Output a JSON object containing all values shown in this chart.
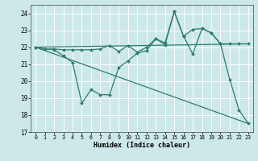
{
  "xlabel": "Humidex (Indice chaleur)",
  "bg_color": "#cce8e8",
  "grid_color": "#ffffff",
  "line_color": "#2e7d6e",
  "xlim": [
    -0.5,
    23.5
  ],
  "ylim": [
    17,
    24.5
  ],
  "yticks": [
    17,
    18,
    19,
    20,
    21,
    22,
    23,
    24
  ],
  "xticks": [
    0,
    1,
    2,
    3,
    4,
    5,
    6,
    7,
    8,
    9,
    10,
    11,
    12,
    13,
    14,
    15,
    16,
    17,
    18,
    19,
    20,
    21,
    22,
    23
  ],
  "lines": [
    {
      "x": [
        0,
        23
      ],
      "y": [
        22.0,
        22.2
      ],
      "has_markers": false,
      "lw": 0.9
    },
    {
      "x": [
        0,
        23
      ],
      "y": [
        22.0,
        17.5
      ],
      "has_markers": false,
      "lw": 0.9
    },
    {
      "x": [
        0,
        1,
        2,
        3,
        4,
        5,
        6,
        7,
        8,
        9,
        10,
        11,
        12,
        13,
        14,
        15,
        16,
        17,
        18,
        19,
        20,
        21,
        22,
        23
      ],
      "y": [
        22.0,
        21.9,
        21.9,
        21.85,
        21.85,
        21.85,
        21.85,
        21.9,
        22.1,
        21.75,
        22.1,
        21.7,
        22.0,
        22.5,
        22.25,
        24.1,
        22.65,
        23.05,
        23.1,
        22.85,
        22.2,
        22.2,
        22.2,
        22.2
      ],
      "has_markers": true,
      "lw": 0.9
    },
    {
      "x": [
        0,
        1,
        2,
        3,
        4,
        5,
        6,
        7,
        8,
        9,
        10,
        11,
        12,
        13,
        14,
        15,
        16,
        17,
        18,
        19,
        20,
        21,
        22,
        23
      ],
      "y": [
        22.0,
        21.9,
        21.85,
        21.5,
        21.1,
        18.7,
        19.5,
        19.2,
        19.2,
        20.8,
        21.2,
        21.65,
        21.8,
        22.5,
        22.15,
        24.1,
        22.65,
        21.6,
        23.1,
        22.85,
        22.2,
        20.1,
        18.3,
        17.5
      ],
      "has_markers": true,
      "lw": 0.9
    }
  ]
}
